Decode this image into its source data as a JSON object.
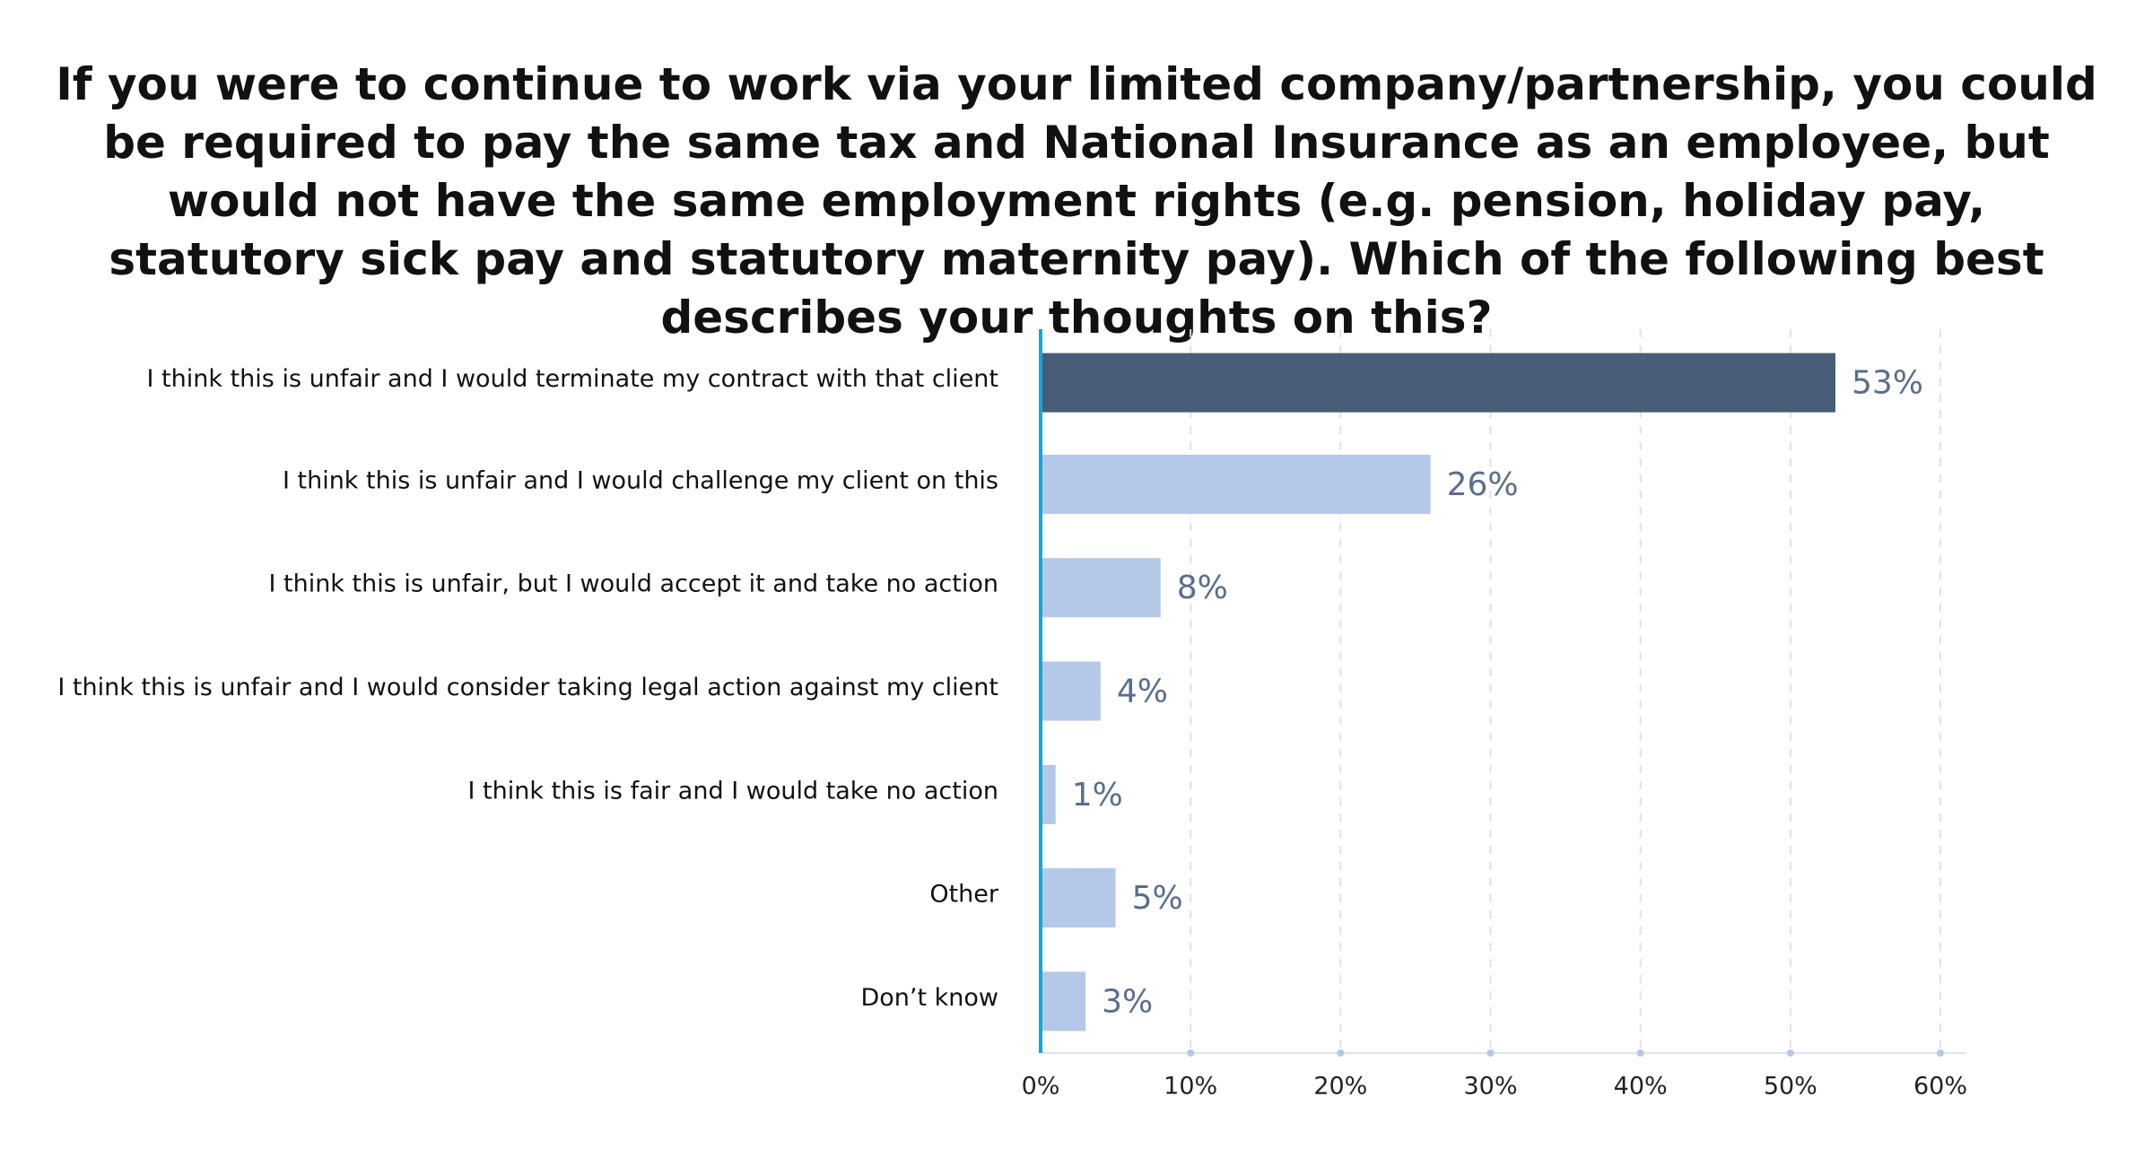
{
  "chart_data": {
    "type": "bar",
    "orientation": "horizontal",
    "title": "If you were to continue to work via your limited company/partnership, you could be required to pay the same tax and National Insurance as an employee, but would not have the same employment rights (e.g. pension, holiday pay, statutory sick pay and statutory maternity pay). Which of the following best describes your thoughts on this?",
    "categories": [
      "I think this is unfair and I would terminate my contract with that client",
      "I think this is unfair and I would challenge my client on this",
      "I think this is unfair, but I would accept it and take no action",
      "I think this is unfair and I would consider taking legal action against my client",
      "I think this is fair and I would take no action",
      "Other",
      "Don’t know"
    ],
    "values": [
      53,
      26,
      8,
      4,
      1,
      5,
      3
    ],
    "value_labels": [
      "53%",
      "26%",
      "8%",
      "4%",
      "1%",
      "5%",
      "3%"
    ],
    "colors": [
      "#4a5d78",
      "#b4c8e8",
      "#b4c8e8",
      "#b4c8e8",
      "#b4c8e8",
      "#b4c8e8",
      "#b4c8e8"
    ],
    "xlim": [
      0,
      60
    ],
    "xticks": [
      {
        "value": 0,
        "label": "0%"
      },
      {
        "value": 10,
        "label": "10%"
      },
      {
        "value": 20,
        "label": "20%"
      },
      {
        "value": 30,
        "label": "30%"
      },
      {
        "value": 40,
        "label": "40%"
      },
      {
        "value": 50,
        "label": "50%"
      },
      {
        "value": 60,
        "label": "60%"
      }
    ],
    "grid": true
  }
}
